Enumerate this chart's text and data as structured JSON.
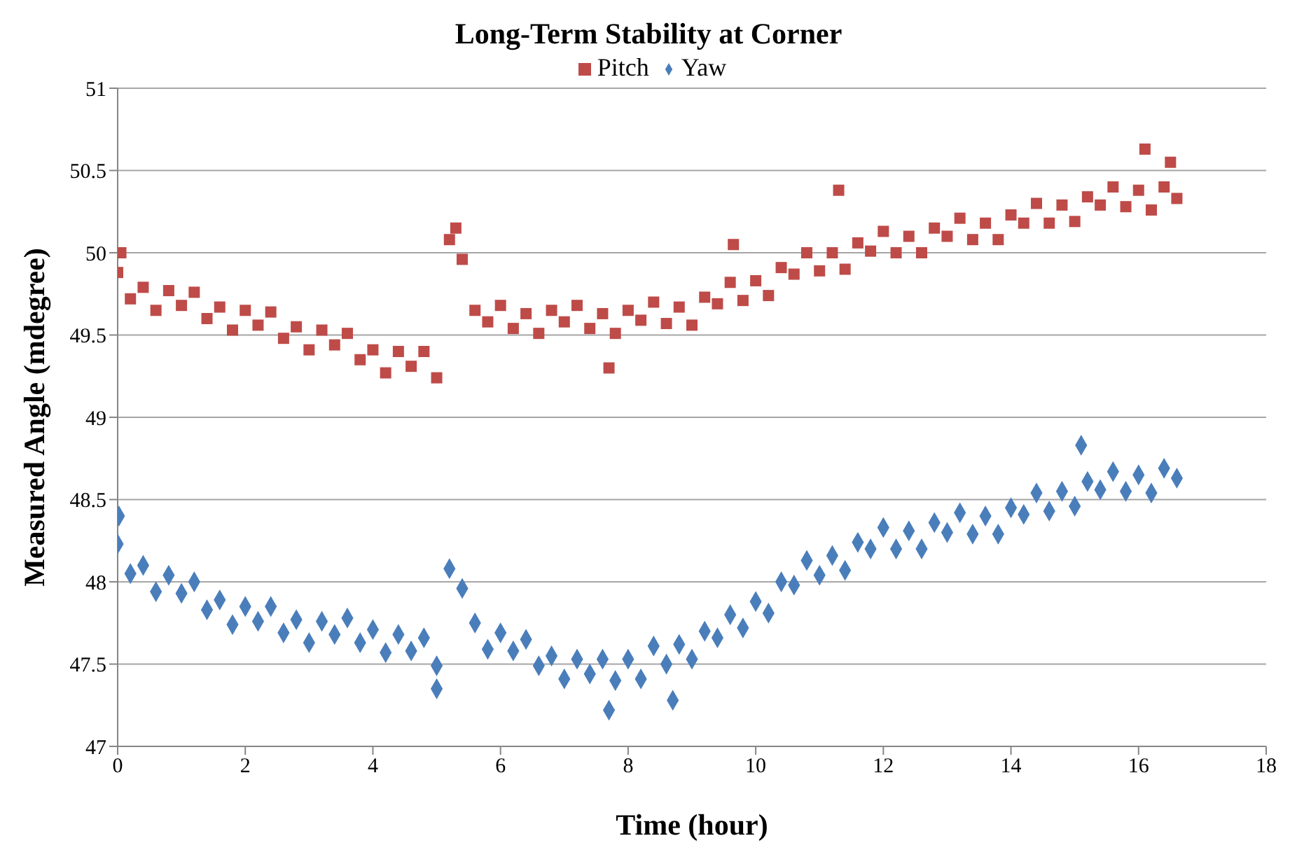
{
  "chart_data": {
    "type": "scatter",
    "title": "Long-Term Stability at Corner",
    "xlabel": "Time (hour)",
    "ylabel": "Measured Angle (mdegree)",
    "xlim": [
      0,
      18
    ],
    "xticks": [
      0,
      2,
      4,
      6,
      8,
      10,
      12,
      14,
      16,
      18
    ],
    "ylim": [
      47,
      51
    ],
    "yticks": [
      47,
      47.5,
      48,
      48.5,
      49,
      49.5,
      50,
      50.5,
      51
    ],
    "grid": "y",
    "legend": "top",
    "series": [
      {
        "name": "Yaw",
        "color": "#4a7ebb",
        "marker": "diamond",
        "x": [
          0.02,
          0,
          0.2,
          0.4,
          0.6,
          0.8,
          1.0,
          1.2,
          1.4,
          1.6,
          1.8,
          2.0,
          2.2,
          2.4,
          2.6,
          2.8,
          3.0,
          3.2,
          3.4,
          3.6,
          3.8,
          4.0,
          4.2,
          4.4,
          4.6,
          4.8,
          5.0,
          5.0,
          5.2,
          5.4,
          5.6,
          5.8,
          6.0,
          6.2,
          6.4,
          6.6,
          6.8,
          7.0,
          7.2,
          7.4,
          7.6,
          7.7,
          7.8,
          8.0,
          8.2,
          8.4,
          8.6,
          8.7,
          8.8,
          9.0,
          9.2,
          9.4,
          9.6,
          9.8,
          10.0,
          10.2,
          10.4,
          10.6,
          10.8,
          11.0,
          11.2,
          11.4,
          11.6,
          11.8,
          12.0,
          12.2,
          12.4,
          12.6,
          12.8,
          13.0,
          13.2,
          13.4,
          13.6,
          13.8,
          14.0,
          14.2,
          14.4,
          14.6,
          14.8,
          15.0,
          15.1,
          15.2,
          15.4,
          15.6,
          15.8,
          16.0,
          16.2,
          16.4,
          16.6
        ],
        "values": [
          48.4,
          48.23,
          48.05,
          48.1,
          47.94,
          48.04,
          47.93,
          48.0,
          47.83,
          47.89,
          47.74,
          47.85,
          47.76,
          47.85,
          47.69,
          47.77,
          47.63,
          47.76,
          47.68,
          47.78,
          47.63,
          47.71,
          47.57,
          47.68,
          47.58,
          47.66,
          47.49,
          47.35,
          48.08,
          47.96,
          47.75,
          47.59,
          47.69,
          47.58,
          47.65,
          47.49,
          47.55,
          47.41,
          47.53,
          47.44,
          47.53,
          47.22,
          47.4,
          47.53,
          47.41,
          47.61,
          47.5,
          47.28,
          47.62,
          47.53,
          47.7,
          47.66,
          47.8,
          47.72,
          47.88,
          47.81,
          48.0,
          47.98,
          48.13,
          48.04,
          48.16,
          48.07,
          48.24,
          48.2,
          48.33,
          48.2,
          48.31,
          48.2,
          48.36,
          48.3,
          48.42,
          48.29,
          48.4,
          48.29,
          48.45,
          48.41,
          48.54,
          48.43,
          48.55,
          48.46,
          48.83,
          48.61,
          48.56,
          48.67,
          48.55,
          48.65,
          48.54,
          48.69,
          48.63
        ]
      },
      {
        "name": "Pitch",
        "color": "#be4b48",
        "marker": "square",
        "x": [
          0.05,
          0,
          0.2,
          0.4,
          0.6,
          0.8,
          1.0,
          1.2,
          1.4,
          1.6,
          1.8,
          2.0,
          2.2,
          2.4,
          2.6,
          2.8,
          3.0,
          3.2,
          3.4,
          3.6,
          3.8,
          4.0,
          4.2,
          4.4,
          4.6,
          4.8,
          5.0,
          5.2,
          5.3,
          5.4,
          5.6,
          5.8,
          6.0,
          6.2,
          6.4,
          6.6,
          6.8,
          7.0,
          7.2,
          7.4,
          7.6,
          7.7,
          7.8,
          8.0,
          8.2,
          8.4,
          8.6,
          8.8,
          9.0,
          9.2,
          9.4,
          9.6,
          9.65,
          9.8,
          10.0,
          10.2,
          10.4,
          10.6,
          10.8,
          11.0,
          11.2,
          11.3,
          11.4,
          11.6,
          11.8,
          12.0,
          12.2,
          12.4,
          12.6,
          12.8,
          13.0,
          13.2,
          13.4,
          13.6,
          13.8,
          14.0,
          14.2,
          14.4,
          14.6,
          14.8,
          15.0,
          15.2,
          15.4,
          15.6,
          15.8,
          16.0,
          16.1,
          16.2,
          16.4,
          16.5,
          16.6
        ],
        "values": [
          50.0,
          49.88,
          49.72,
          49.79,
          49.65,
          49.77,
          49.68,
          49.76,
          49.6,
          49.67,
          49.53,
          49.65,
          49.56,
          49.64,
          49.48,
          49.55,
          49.41,
          49.53,
          49.44,
          49.51,
          49.35,
          49.41,
          49.27,
          49.4,
          49.31,
          49.4,
          49.24,
          50.08,
          50.15,
          49.96,
          49.65,
          49.58,
          49.68,
          49.54,
          49.63,
          49.51,
          49.65,
          49.58,
          49.68,
          49.54,
          49.63,
          49.3,
          49.51,
          49.65,
          49.59,
          49.7,
          49.57,
          49.67,
          49.56,
          49.73,
          49.69,
          49.82,
          50.05,
          49.71,
          49.83,
          49.74,
          49.91,
          49.87,
          50.0,
          49.89,
          50.0,
          50.38,
          49.9,
          50.06,
          50.01,
          50.13,
          50.0,
          50.1,
          50.0,
          50.15,
          50.1,
          50.21,
          50.08,
          50.18,
          50.08,
          50.23,
          50.18,
          50.3,
          50.18,
          50.29,
          50.19,
          50.34,
          50.29,
          50.4,
          50.28,
          50.38,
          50.63,
          50.26,
          50.4,
          50.55,
          50.33
        ]
      }
    ]
  }
}
